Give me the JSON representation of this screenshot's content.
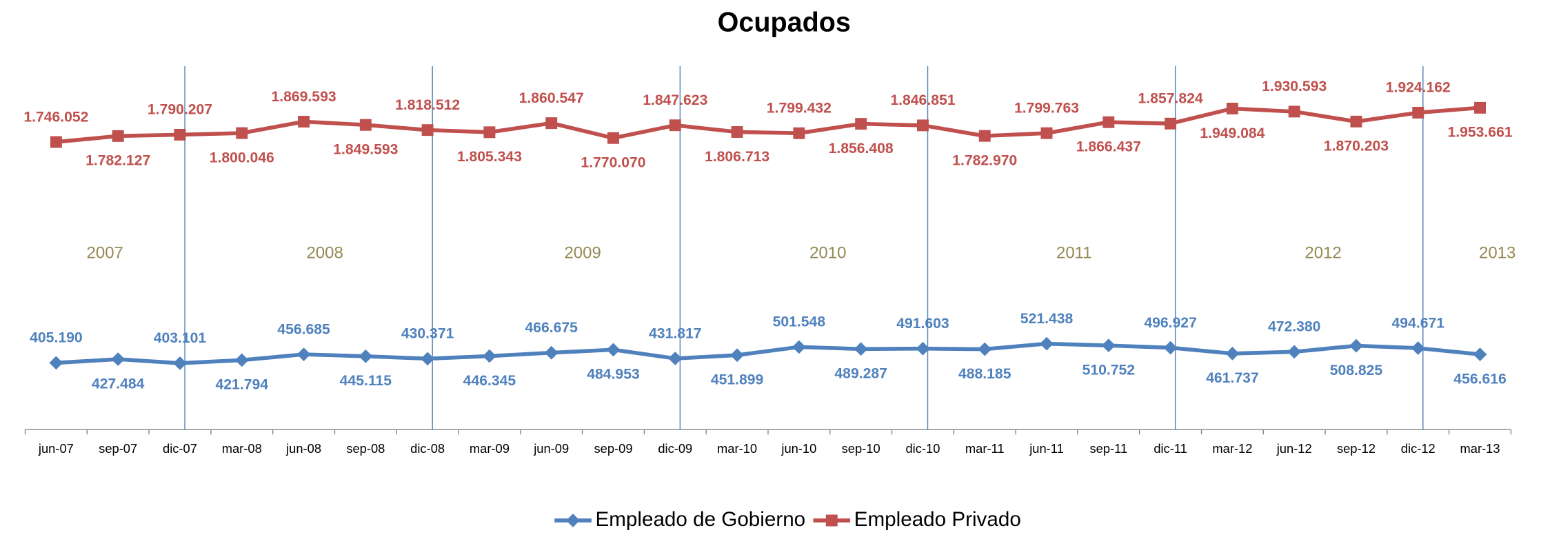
{
  "chart_data": {
    "type": "line",
    "title": "Ocupados",
    "categories": [
      "jun-07",
      "sep-07",
      "dic-07",
      "mar-08",
      "jun-08",
      "sep-08",
      "dic-08",
      "mar-09",
      "jun-09",
      "sep-09",
      "dic-09",
      "mar-10",
      "jun-10",
      "sep-10",
      "dic-10",
      "mar-11",
      "jun-11",
      "sep-11",
      "dic-11",
      "mar-12",
      "jun-12",
      "sep-12",
      "dic-12",
      "mar-13"
    ],
    "ylim": [
      0,
      2500000
    ],
    "legend": "bottom",
    "annotations": [
      "2007",
      "2008",
      "2009",
      "2010",
      "2011",
      "2012",
      "2013"
    ],
    "series": [
      {
        "name": "Empleado de Gobierno",
        "color": "#4f81bd",
        "marker": "diamond",
        "values": [
          405190,
          427484,
          403101,
          421794,
          456685,
          445115,
          430371,
          446345,
          466675,
          484953,
          431817,
          451899,
          501548,
          489287,
          491603,
          488185,
          521438,
          510752,
          496927,
          461737,
          472380,
          508825,
          494671,
          456616
        ],
        "value_labels": [
          "405.190",
          "427.484",
          "403.101",
          "421.794",
          "456.685",
          "445.115",
          "430.371",
          "446.345",
          "466.675",
          "484.953",
          "431.817",
          "451.899",
          "501.548",
          "489.287",
          "491.603",
          "488.185",
          "521.438",
          "510.752",
          "496.927",
          "461.737",
          "472.380",
          "508.825",
          "494.671",
          "456.616"
        ]
      },
      {
        "name": "Empleado Privado",
        "color": "#c0504d",
        "marker": "square",
        "values": [
          1746052,
          1782127,
          1790207,
          1800046,
          1869593,
          1849593,
          1818512,
          1805343,
          1860547,
          1770070,
          1847623,
          1806713,
          1799432,
          1856408,
          1846851,
          1782970,
          1799763,
          1866437,
          1857824,
          1949084,
          1930593,
          1870203,
          1924162,
          1953661
        ],
        "value_labels": [
          "1.746.052",
          "1.782.127",
          "1.790.207",
          "1.800.046",
          "1.869.593",
          "1.849.593",
          "1.818.512",
          "1.805.343",
          "1.860.547",
          "1.770.070",
          "1.847.623",
          "1.806.713",
          "1.799.432",
          "1.856.408",
          "1.846.851",
          "1.782.970",
          "1.799.763",
          "1.866.437",
          "1.857.824",
          "1.949.084",
          "1.930.593",
          "1.870.203",
          "1.924.162",
          "1.953.661"
        ]
      }
    ]
  }
}
